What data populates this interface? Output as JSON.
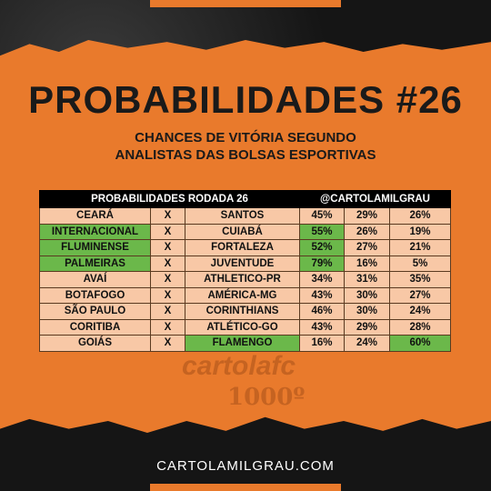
{
  "title": "PROBABILIDADES #26",
  "subtitle_line1": "CHANCES DE VITÓRIA SEGUNDO",
  "subtitle_line2": "ANALISTAS DAS BOLSAS ESPORTIVAS",
  "table": {
    "header_left": "PROBABILIDADES RODADA 26",
    "header_right": "@CARTOLAMILGRAU",
    "rows": [
      {
        "home": "CEARÁ",
        "vs": "X",
        "away": "SANTOS",
        "p_home": "45%",
        "p_draw": "29%",
        "p_away": "26%",
        "highlight": "none"
      },
      {
        "home": "INTERNACIONAL",
        "vs": "X",
        "away": "CUIABÁ",
        "p_home": "55%",
        "p_draw": "26%",
        "p_away": "19%",
        "highlight": "home"
      },
      {
        "home": "FLUMINENSE",
        "vs": "X",
        "away": "FORTALEZA",
        "p_home": "52%",
        "p_draw": "27%",
        "p_away": "21%",
        "highlight": "home"
      },
      {
        "home": "PALMEIRAS",
        "vs": "X",
        "away": "JUVENTUDE",
        "p_home": "79%",
        "p_draw": "16%",
        "p_away": "5%",
        "highlight": "home"
      },
      {
        "home": "AVAÍ",
        "vs": "X",
        "away": "ATHLETICO-PR",
        "p_home": "34%",
        "p_draw": "31%",
        "p_away": "35%",
        "highlight": "none"
      },
      {
        "home": "BOTAFOGO",
        "vs": "X",
        "away": "AMÉRICA-MG",
        "p_home": "43%",
        "p_draw": "30%",
        "p_away": "27%",
        "highlight": "none"
      },
      {
        "home": "SÃO PAULO",
        "vs": "X",
        "away": "CORINTHIANS",
        "p_home": "46%",
        "p_draw": "30%",
        "p_away": "24%",
        "highlight": "none"
      },
      {
        "home": "CORITIBA",
        "vs": "X",
        "away": "ATLÉTICO-GO",
        "p_home": "43%",
        "p_draw": "29%",
        "p_away": "28%",
        "highlight": "none"
      },
      {
        "home": "GOIÁS",
        "vs": "X",
        "away": "FLAMENGO",
        "p_home": "16%",
        "p_draw": "24%",
        "p_away": "60%",
        "highlight": "away"
      }
    ]
  },
  "watermark": {
    "logo": "cartolafc",
    "sub": "1000º"
  },
  "footer": "CARTOLAMILGRAU.COM",
  "colors": {
    "accent": "#e97a2c",
    "highlight": "#6bb84a",
    "cell": "#f8c8a6",
    "dark": "#1a1a1a"
  }
}
